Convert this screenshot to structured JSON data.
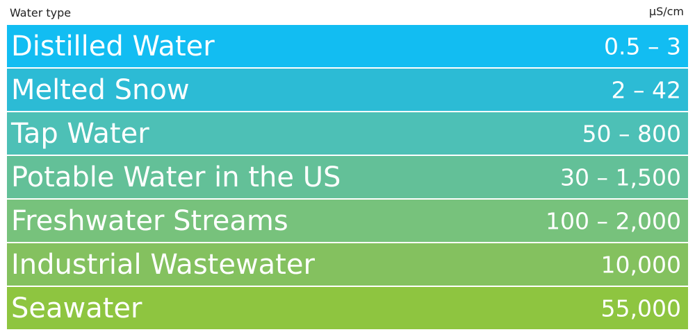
{
  "header": {
    "left_label": "Water type",
    "right_label": "µS/cm"
  },
  "rows": [
    {
      "label": "Distilled Water",
      "value": "0.5 – 3",
      "color": "#12BDF2"
    },
    {
      "label": "Melted Snow",
      "value": "2 – 42",
      "color": "#2CBBD5"
    },
    {
      "label": "Tap Water",
      "value": "50 – 800",
      "color": "#4DC0B6"
    },
    {
      "label": "Potable Water in the US",
      "value": "30 – 1,500",
      "color": "#63C098"
    },
    {
      "label": "Freshwater Streams",
      "value": "100 – 2,000",
      "color": "#77C27C"
    },
    {
      "label": "Industrial Wastewater",
      "value": "10,000",
      "color": "#84C15F"
    },
    {
      "label": "Seawater",
      "value": "55,000",
      "color": "#8EC540"
    }
  ],
  "chart_data": {
    "type": "table",
    "columns": [
      "Water type",
      "µS/cm"
    ],
    "rows": [
      [
        "Distilled Water",
        "0.5 – 3"
      ],
      [
        "Melted Snow",
        "2 – 42"
      ],
      [
        "Tap Water",
        "50 – 800"
      ],
      [
        "Potable Water in the US",
        "30 – 1,500"
      ],
      [
        "Freshwater Streams",
        "100 – 2,000"
      ],
      [
        "Industrial Wastewater",
        "10,000"
      ],
      [
        "Seawater",
        "55,000"
      ]
    ]
  }
}
